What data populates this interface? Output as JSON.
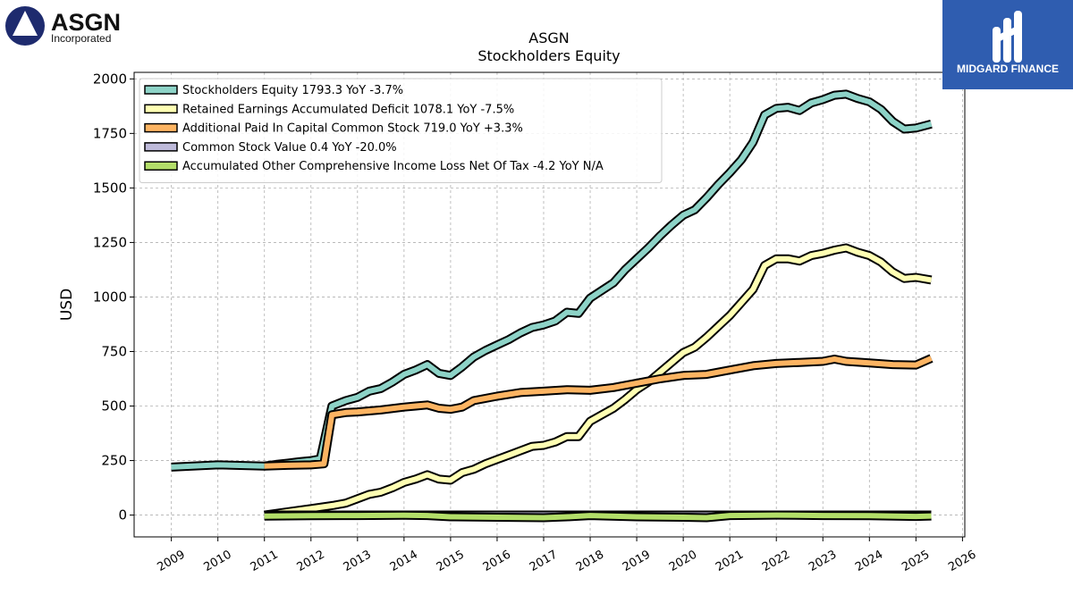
{
  "brand": {
    "company_logo_word": "ASGN",
    "company_logo_sub": "Incorporated",
    "watermark_text": "MIDGARD FINANCE",
    "watermark_color": "#2f5db0"
  },
  "chart_data": {
    "type": "line",
    "title": "ASGN",
    "subtitle": "Stockholders  Equity",
    "xlabel": "",
    "ylabel": "USD",
    "xlim": [
      2008.2,
      2026.05
    ],
    "ylim": [
      -100,
      2030
    ],
    "x_ticks": [
      2009,
      2010,
      2011,
      2012,
      2013,
      2014,
      2015,
      2016,
      2017,
      2018,
      2019,
      2020,
      2021,
      2022,
      2023,
      2024,
      2025,
      2026
    ],
    "y_ticks": [
      0,
      250,
      500,
      750,
      1000,
      1250,
      1500,
      1750,
      2000
    ],
    "grid": true,
    "legend_position": "top-left",
    "series": [
      {
        "name": "Stockholders Equity  1793.3 YoY -3.7%",
        "color": "#8dd3c7",
        "points": [
          [
            2009.0,
            220
          ],
          [
            2010.0,
            230
          ],
          [
            2011.0,
            225
          ],
          [
            2011.25,
            232
          ],
          [
            2011.5,
            238
          ],
          [
            2011.75,
            245
          ],
          [
            2012.0,
            250
          ],
          [
            2012.2,
            258
          ],
          [
            2012.45,
            500
          ],
          [
            2012.75,
            525
          ],
          [
            2013.0,
            540
          ],
          [
            2013.25,
            568
          ],
          [
            2013.5,
            580
          ],
          [
            2013.75,
            610
          ],
          [
            2014.0,
            645
          ],
          [
            2014.25,
            665
          ],
          [
            2014.5,
            690
          ],
          [
            2014.75,
            650
          ],
          [
            2015.0,
            640
          ],
          [
            2015.25,
            680
          ],
          [
            2015.5,
            725
          ],
          [
            2015.75,
            755
          ],
          [
            2016.0,
            780
          ],
          [
            2016.25,
            805
          ],
          [
            2016.5,
            835
          ],
          [
            2016.75,
            860
          ],
          [
            2017.0,
            872
          ],
          [
            2017.25,
            890
          ],
          [
            2017.5,
            930
          ],
          [
            2017.75,
            925
          ],
          [
            2018.0,
            995
          ],
          [
            2018.25,
            1030
          ],
          [
            2018.5,
            1065
          ],
          [
            2018.75,
            1125
          ],
          [
            2019.0,
            1175
          ],
          [
            2019.25,
            1225
          ],
          [
            2019.5,
            1280
          ],
          [
            2019.75,
            1330
          ],
          [
            2020.0,
            1375
          ],
          [
            2020.25,
            1400
          ],
          [
            2020.5,
            1455
          ],
          [
            2020.75,
            1515
          ],
          [
            2021.0,
            1570
          ],
          [
            2021.25,
            1630
          ],
          [
            2021.5,
            1710
          ],
          [
            2021.75,
            1835
          ],
          [
            2022.0,
            1865
          ],
          [
            2022.25,
            1870
          ],
          [
            2022.5,
            1855
          ],
          [
            2022.75,
            1890
          ],
          [
            2023.0,
            1905
          ],
          [
            2023.25,
            1925
          ],
          [
            2023.5,
            1930
          ],
          [
            2023.75,
            1910
          ],
          [
            2024.0,
            1895
          ],
          [
            2024.25,
            1860
          ],
          [
            2024.5,
            1805
          ],
          [
            2024.75,
            1770
          ],
          [
            2025.0,
            1775
          ],
          [
            2025.33,
            1793.3
          ]
        ]
      },
      {
        "name": "Retained Earnings Accumulated Deficit  1078.1 YoY -7.5%",
        "color": "#ffffb3",
        "points": [
          [
            2011.0,
            0
          ],
          [
            2011.5,
            15
          ],
          [
            2012.0,
            30
          ],
          [
            2012.5,
            45
          ],
          [
            2012.75,
            55
          ],
          [
            2013.0,
            75
          ],
          [
            2013.25,
            95
          ],
          [
            2013.5,
            105
          ],
          [
            2013.75,
            125
          ],
          [
            2014.0,
            150
          ],
          [
            2014.25,
            165
          ],
          [
            2014.5,
            185
          ],
          [
            2014.75,
            165
          ],
          [
            2015.0,
            160
          ],
          [
            2015.25,
            195
          ],
          [
            2015.5,
            210
          ],
          [
            2015.75,
            235
          ],
          [
            2016.0,
            255
          ],
          [
            2016.25,
            275
          ],
          [
            2016.5,
            295
          ],
          [
            2016.75,
            315
          ],
          [
            2017.0,
            320
          ],
          [
            2017.25,
            335
          ],
          [
            2017.5,
            360
          ],
          [
            2017.75,
            360
          ],
          [
            2018.0,
            430
          ],
          [
            2018.25,
            460
          ],
          [
            2018.5,
            490
          ],
          [
            2018.75,
            530
          ],
          [
            2019.0,
            575
          ],
          [
            2019.25,
            610
          ],
          [
            2019.5,
            655
          ],
          [
            2019.75,
            700
          ],
          [
            2020.0,
            745
          ],
          [
            2020.25,
            770
          ],
          [
            2020.5,
            815
          ],
          [
            2020.75,
            865
          ],
          [
            2021.0,
            915
          ],
          [
            2021.25,
            975
          ],
          [
            2021.5,
            1035
          ],
          [
            2021.75,
            1145
          ],
          [
            2022.0,
            1175
          ],
          [
            2022.25,
            1175
          ],
          [
            2022.5,
            1165
          ],
          [
            2022.75,
            1190
          ],
          [
            2023.0,
            1200
          ],
          [
            2023.25,
            1215
          ],
          [
            2023.5,
            1225
          ],
          [
            2023.75,
            1205
          ],
          [
            2024.0,
            1190
          ],
          [
            2024.25,
            1160
          ],
          [
            2024.5,
            1115
          ],
          [
            2024.75,
            1085
          ],
          [
            2025.0,
            1090
          ],
          [
            2025.33,
            1078.1
          ]
        ]
      },
      {
        "name": "Additional Paid In Capital Common Stock  719.0 YoY +3.3%",
        "color": "#fdb462",
        "points": [
          [
            2011.0,
            225
          ],
          [
            2011.5,
            228
          ],
          [
            2012.0,
            230
          ],
          [
            2012.28,
            235
          ],
          [
            2012.45,
            460
          ],
          [
            2012.75,
            470
          ],
          [
            2013.0,
            473
          ],
          [
            2013.5,
            482
          ],
          [
            2014.0,
            495
          ],
          [
            2014.25,
            500
          ],
          [
            2014.5,
            505
          ],
          [
            2014.75,
            490
          ],
          [
            2015.0,
            485
          ],
          [
            2015.25,
            495
          ],
          [
            2015.5,
            525
          ],
          [
            2016.0,
            545
          ],
          [
            2016.5,
            562
          ],
          [
            2017.0,
            568
          ],
          [
            2017.5,
            575
          ],
          [
            2018.0,
            572
          ],
          [
            2018.5,
            585
          ],
          [
            2019.0,
            605
          ],
          [
            2019.5,
            625
          ],
          [
            2020.0,
            640
          ],
          [
            2020.5,
            645
          ],
          [
            2021.0,
            665
          ],
          [
            2021.5,
            685
          ],
          [
            2022.0,
            695
          ],
          [
            2022.5,
            700
          ],
          [
            2023.0,
            705
          ],
          [
            2023.25,
            715
          ],
          [
            2023.5,
            705
          ],
          [
            2024.0,
            698
          ],
          [
            2024.5,
            690
          ],
          [
            2025.0,
            688
          ],
          [
            2025.33,
            719.0
          ]
        ]
      },
      {
        "name": "Common Stock Value  0.4 YoY -20.0%",
        "color": "#bebada",
        "points": [
          [
            2011.0,
            0.5
          ],
          [
            2013.0,
            0.5
          ],
          [
            2015.0,
            0.5
          ],
          [
            2017.0,
            0.5
          ],
          [
            2019.0,
            0.5
          ],
          [
            2021.0,
            0.5
          ],
          [
            2023.0,
            0.5
          ],
          [
            2025.33,
            0.4
          ]
        ]
      },
      {
        "name": "Accumulated Other Comprehensive Income Loss Net Of Tax  -4.2 YoY N/A",
        "color": "#b3de69",
        "points": [
          [
            2011.0,
            -5
          ],
          [
            2012.0,
            -3
          ],
          [
            2013.0,
            -2
          ],
          [
            2014.0,
            -1
          ],
          [
            2014.5,
            -2
          ],
          [
            2015.0,
            -8
          ],
          [
            2016.0,
            -10
          ],
          [
            2017.0,
            -12
          ],
          [
            2017.5,
            -8
          ],
          [
            2018.0,
            -2
          ],
          [
            2019.0,
            -8
          ],
          [
            2020.0,
            -10
          ],
          [
            2020.5,
            -12
          ],
          [
            2021.0,
            -2
          ],
          [
            2022.0,
            0
          ],
          [
            2023.0,
            -2
          ],
          [
            2024.0,
            -3
          ],
          [
            2025.0,
            -6
          ],
          [
            2025.33,
            -4.2
          ]
        ]
      }
    ]
  }
}
